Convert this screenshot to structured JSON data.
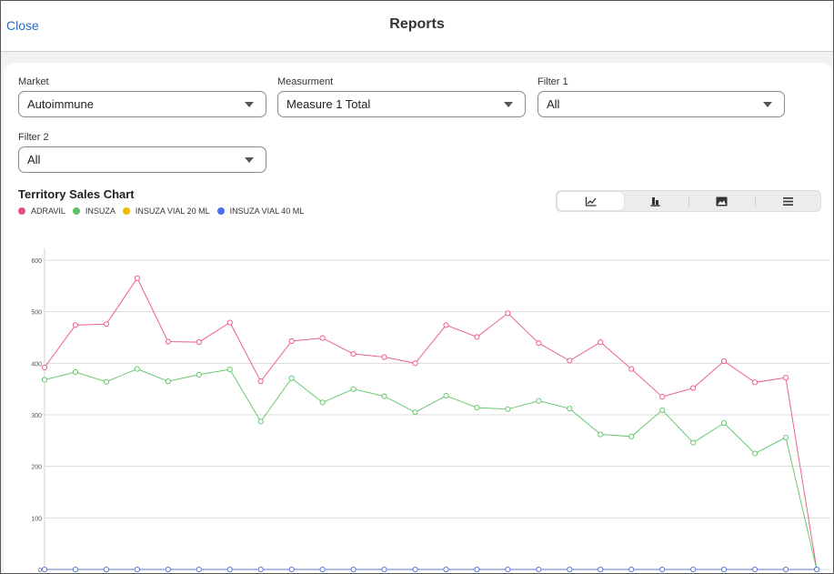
{
  "header": {
    "close_label": "Close",
    "title": "Reports"
  },
  "filters": [
    {
      "label": "Market",
      "value": "Autoimmune"
    },
    {
      "label": "Measurment",
      "value": "Measure 1 Total"
    },
    {
      "label": "Filter 1",
      "value": "All"
    },
    {
      "label": "Filter 2",
      "value": "All"
    }
  ],
  "chart_title": "Territory Sales Chart",
  "view_toggle": {
    "icons": [
      "line-chart-icon",
      "bar-chart-icon",
      "image-icon",
      "list-icon"
    ],
    "active": "line-chart-icon"
  },
  "colors": {
    "accent": "#2a6bc4",
    "adravil": "#e8537a",
    "insuza": "#5bc266",
    "insuza_vial_20": "#f5b800",
    "insuza_vial_40": "#4a72e8"
  },
  "chart_data": {
    "type": "line",
    "title": "Territory Sales Chart",
    "xlabel": "",
    "ylabel": "",
    "ylim": [
      0,
      600
    ],
    "yticks": [
      0,
      100,
      200,
      300,
      400,
      500,
      600
    ],
    "grid": true,
    "legend_position": "top-left",
    "x": [
      1,
      2,
      3,
      4,
      5,
      6,
      7,
      8,
      9,
      10,
      11,
      12,
      13,
      14,
      15,
      16,
      17,
      18,
      19,
      20,
      21,
      22,
      23,
      24,
      25,
      26
    ],
    "series": [
      {
        "name": "ADRAVIL",
        "color": "#e8537a",
        "values": [
          392,
          474,
          476,
          565,
          442,
          441,
          479,
          365,
          443,
          449,
          418,
          412,
          400,
          474,
          451,
          497,
          439,
          405,
          441,
          389,
          335,
          352,
          404,
          363,
          372,
          0
        ]
      },
      {
        "name": "INSUZA",
        "color": "#5bc266",
        "values": [
          368,
          383,
          364,
          389,
          365,
          378,
          388,
          287,
          371,
          324,
          350,
          336,
          305,
          337,
          314,
          311,
          327,
          312,
          262,
          258,
          309,
          246,
          284,
          225,
          256,
          0
        ]
      },
      {
        "name": "INSUZA VIAL 20 ML",
        "color": "#f5b800",
        "values": [
          0,
          0,
          0,
          0,
          0,
          0,
          0,
          0,
          0,
          0,
          0,
          0,
          0,
          0,
          0,
          0,
          0,
          0,
          0,
          0,
          0,
          0,
          0,
          0,
          0,
          0
        ]
      },
      {
        "name": "INSUZA VIAL 40 ML",
        "color": "#4a72e8",
        "values": [
          0,
          0,
          0,
          0,
          0,
          0,
          0,
          0,
          0,
          0,
          0,
          0,
          0,
          0,
          0,
          0,
          0,
          0,
          0,
          0,
          0,
          0,
          0,
          0,
          0,
          0
        ]
      }
    ]
  }
}
